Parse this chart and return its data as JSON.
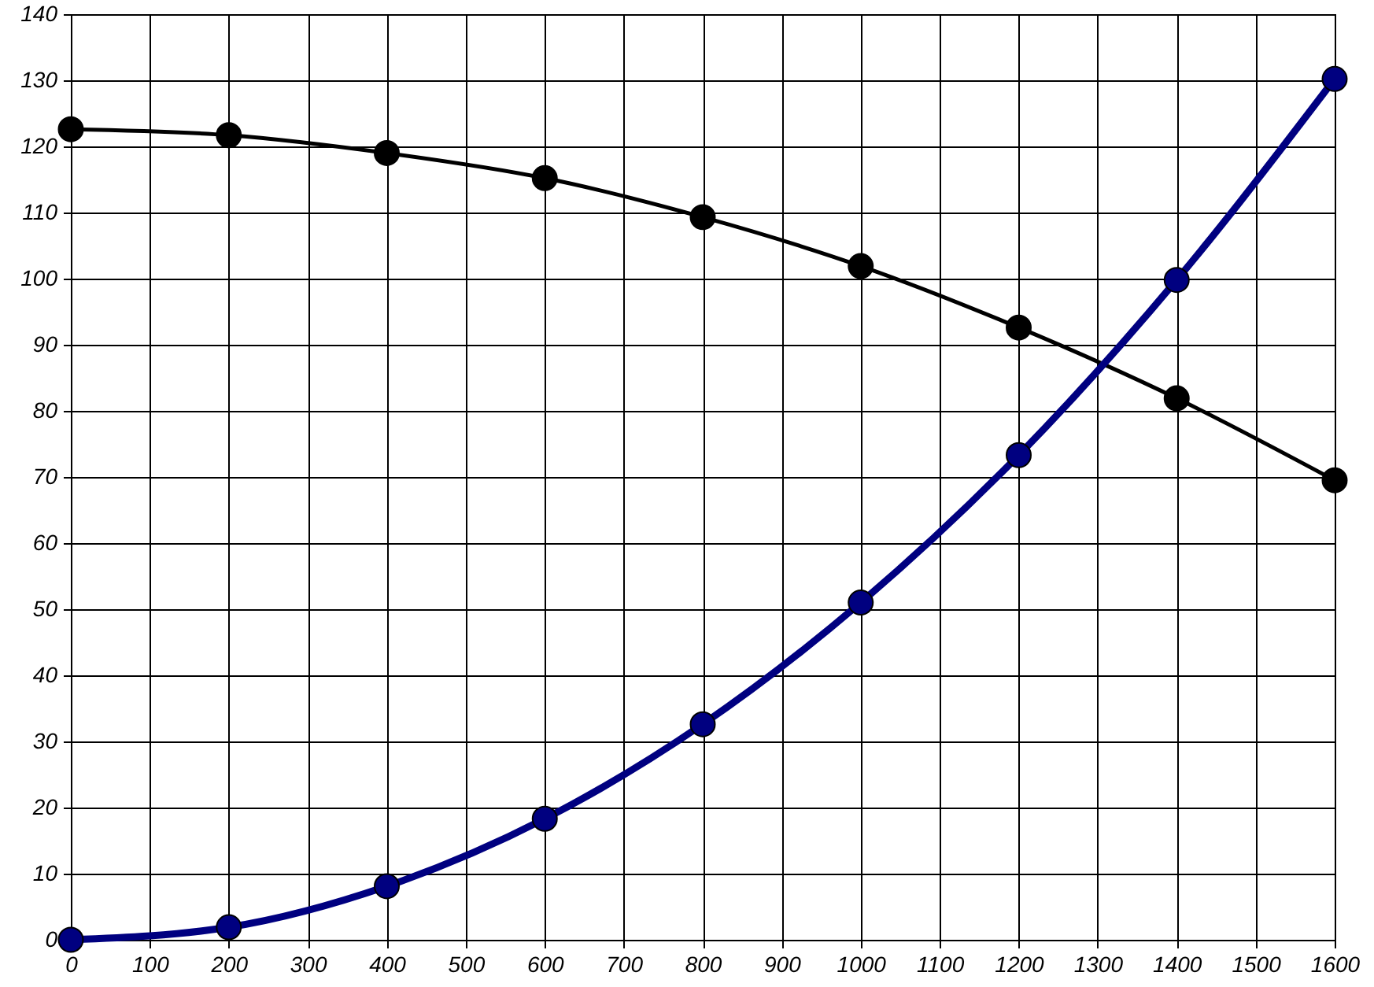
{
  "chart_data": {
    "type": "line",
    "x": [
      0,
      200,
      400,
      600,
      800,
      1000,
      1200,
      1400,
      1600
    ],
    "series": [
      {
        "color": "#000000",
        "values": [
          122.6,
          121.7,
          119.0,
          115.2,
          109.3,
          101.9,
          92.6,
          81.9,
          69.5
        ]
      },
      {
        "color": "#000080",
        "values": [
          0,
          1.9,
          8.1,
          18.3,
          32.6,
          51.0,
          73.3,
          99.8,
          130.2
        ]
      }
    ],
    "xlim": [
      0,
      1600
    ],
    "xticks": [
      0,
      100,
      200,
      300,
      400,
      500,
      600,
      700,
      800,
      900,
      1000,
      1100,
      1200,
      1300,
      1400,
      1500,
      1600
    ],
    "ylim": [
      0,
      140
    ],
    "yticks": [
      0,
      10,
      20,
      30,
      40,
      50,
      60,
      70,
      80,
      90,
      100,
      110,
      120,
      130,
      140
    ],
    "grid": true,
    "marker": "circle",
    "line_style": "solid"
  }
}
